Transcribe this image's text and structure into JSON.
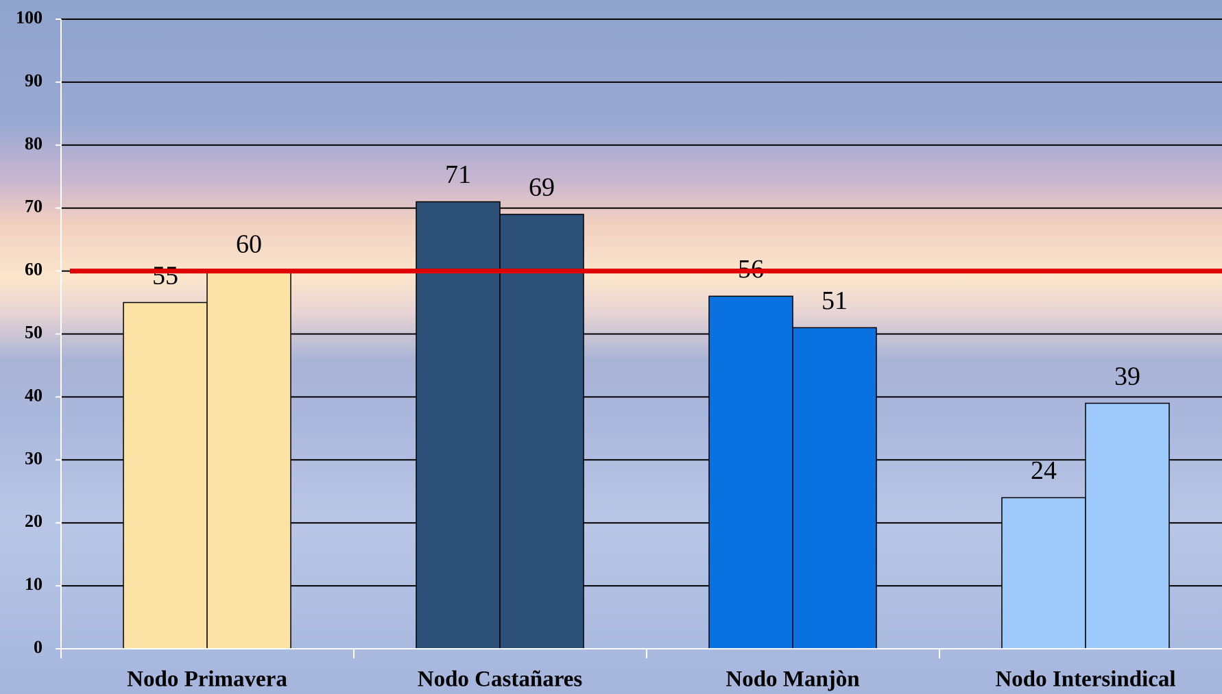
{
  "chart_data": {
    "type": "bar",
    "categories": [
      "Nodo Primavera",
      "Nodo Castañares",
      "Nodo Manjòn",
      "Nodo Intersindical"
    ],
    "series": [
      {
        "values": [
          55,
          71,
          56,
          24
        ]
      },
      {
        "values": [
          60,
          69,
          51,
          39
        ]
      }
    ],
    "category_colors": [
      "#fde2a6",
      "#2c5078",
      "#0a72e0",
      "#9ec9fb"
    ],
    "reference_line": {
      "value": 60,
      "color": "#e00000"
    },
    "ylim": [
      0,
      100
    ],
    "yticks": [
      0,
      10,
      20,
      30,
      40,
      50,
      60,
      70,
      80,
      90,
      100
    ],
    "grid": true
  }
}
